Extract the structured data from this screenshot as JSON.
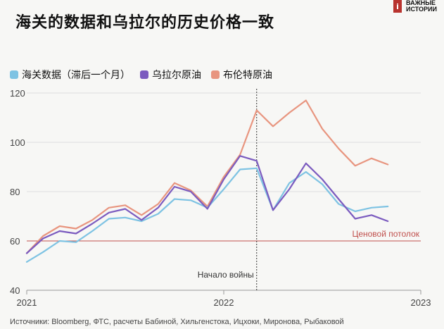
{
  "title": "海关的数据和乌拉尔的历史价格一致",
  "logo": {
    "mark": "i",
    "line1": "ВАЖНЫЕ",
    "line2": "ИСТОРИИ",
    "color": "#b8332e"
  },
  "legend": [
    {
      "label": "海关数据（滞后一个月）",
      "color": "#7ec3e3"
    },
    {
      "label": "乌拉尔原油",
      "color": "#7b5bbf"
    },
    {
      "label": "布伦特原油",
      "color": "#e8957f"
    }
  ],
  "footnote": "Источники: Bloomberg, ФТС, расчеты Бабиной, Хильгенстока, Ицхоки, Миронова, Рыбаковой",
  "chart_data": {
    "type": "line",
    "x_domain": [
      2021,
      2023
    ],
    "ylim": [
      40,
      120
    ],
    "yticks": [
      40,
      60,
      80,
      100,
      120
    ],
    "xticks": [
      {
        "value": 2021,
        "label": "2021"
      },
      {
        "value": 2022,
        "label": "2022"
      },
      {
        "value": 2023,
        "label": "2023"
      }
    ],
    "grid": "horizontal",
    "series": [
      {
        "name": "海关数据（滞后一个月）",
        "color": "#7ec3e3",
        "x": [
          2021.0,
          2021.083,
          2021.167,
          2021.25,
          2021.333,
          2021.417,
          2021.5,
          2021.583,
          2021.667,
          2021.75,
          2021.833,
          2021.917,
          2022.0,
          2022.083,
          2022.167,
          2022.25,
          2022.333,
          2022.417,
          2022.5,
          2022.583,
          2022.667,
          2022.75,
          2022.833
        ],
        "values": [
          51.5,
          55.5,
          60,
          59.5,
          64,
          69,
          69.5,
          68,
          71,
          77,
          76.5,
          73.5,
          81,
          89,
          89.5,
          72.5,
          83.5,
          88,
          83,
          75,
          72,
          73.5,
          74
        ]
      },
      {
        "name": "乌拉尔原油",
        "color": "#7b5bbf",
        "x": [
          2021.0,
          2021.083,
          2021.167,
          2021.25,
          2021.333,
          2021.417,
          2021.5,
          2021.583,
          2021.667,
          2021.75,
          2021.833,
          2021.917,
          2022.0,
          2022.083,
          2022.167,
          2022.25,
          2022.333,
          2022.417,
          2022.5,
          2022.583,
          2022.667,
          2022.75,
          2022.833
        ],
        "values": [
          55,
          61,
          64,
          63,
          67,
          71.5,
          73,
          68.5,
          73.5,
          82,
          80,
          73,
          85,
          94.5,
          92.5,
          72.5,
          81,
          91.5,
          85,
          77,
          69,
          70.5,
          68
        ]
      },
      {
        "name": "布伦特原油",
        "color": "#e8957f",
        "x": [
          2021.0,
          2021.083,
          2021.167,
          2021.25,
          2021.333,
          2021.417,
          2021.5,
          2021.583,
          2021.667,
          2021.75,
          2021.833,
          2021.917,
          2022.0,
          2022.083,
          2022.167,
          2022.25,
          2022.333,
          2022.417,
          2022.5,
          2022.583,
          2022.667,
          2022.75,
          2022.833
        ],
        "values": [
          55,
          62,
          66,
          65,
          68.5,
          73.5,
          74.5,
          70.5,
          75,
          83.5,
          80.5,
          74,
          86,
          95,
          113,
          106.5,
          112,
          117,
          105.5,
          97.5,
          90.5,
          93.5,
          91
        ]
      }
    ],
    "annotations": [
      {
        "type": "hline",
        "y": 60,
        "label": "Ценовой потолок",
        "color": "#c0504d"
      },
      {
        "type": "vline",
        "x": 2022.167,
        "label": "Начало войны",
        "color": "#333333"
      }
    ]
  }
}
